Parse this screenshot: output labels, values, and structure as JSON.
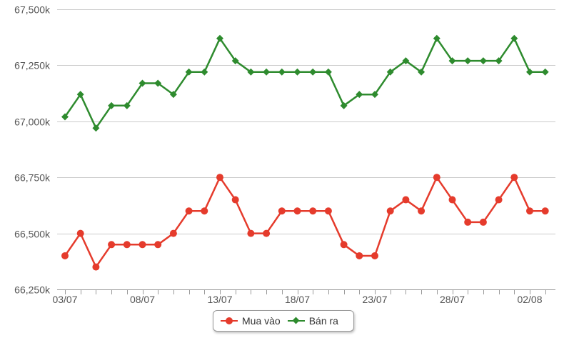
{
  "chart_data": {
    "type": "line",
    "title": "",
    "xlabel": "",
    "ylabel": "",
    "x": [
      "03/07",
      "04/07",
      "05/07",
      "06/07",
      "07/07",
      "08/07",
      "09/07",
      "10/07",
      "11/07",
      "12/07",
      "13/07",
      "14/07",
      "15/07",
      "16/07",
      "17/07",
      "18/07",
      "19/07",
      "20/07",
      "21/07",
      "22/07",
      "23/07",
      "24/07",
      "25/07",
      "26/07",
      "27/07",
      "28/07",
      "29/07",
      "30/07",
      "31/07",
      "01/08",
      "02/08",
      "03/08"
    ],
    "x_tick_labels": [
      "03/07",
      "08/07",
      "13/07",
      "18/07",
      "23/07",
      "28/07",
      "02/08"
    ],
    "y_tick_labels": [
      "66,250k",
      "66,500k",
      "66,750k",
      "67,000k",
      "67,250k",
      "67,500k"
    ],
    "y_ticks": [
      66250,
      66500,
      66750,
      67000,
      67250,
      67500
    ],
    "ylim": [
      66250,
      67500
    ],
    "grid": true,
    "legend_position": "bottom-center",
    "series": [
      {
        "name": "Mua vào",
        "color": "#e53b2c",
        "marker": "circle",
        "values": [
          66400,
          66500,
          66350,
          66450,
          66450,
          66450,
          66450,
          66500,
          66600,
          66600,
          66750,
          66650,
          66500,
          66500,
          66600,
          66600,
          66600,
          66600,
          66450,
          66400,
          66400,
          66600,
          66650,
          66600,
          66750,
          66650,
          66550,
          66550,
          66650,
          66750,
          66600,
          66600
        ]
      },
      {
        "name": "Bán ra",
        "color": "#2e8b2e",
        "marker": "diamond",
        "values": [
          67020,
          67120,
          66970,
          67070,
          67070,
          67170,
          67170,
          67120,
          67220,
          67220,
          67370,
          67270,
          67220,
          67220,
          67220,
          67220,
          67220,
          67220,
          67070,
          67120,
          67120,
          67220,
          67270,
          67220,
          67370,
          67270,
          67270,
          67270,
          67270,
          67370,
          67220,
          67220
        ]
      }
    ]
  },
  "colors": {
    "grid": "#cccccc",
    "axis": "#9a9a9a",
    "text": "#555555"
  }
}
